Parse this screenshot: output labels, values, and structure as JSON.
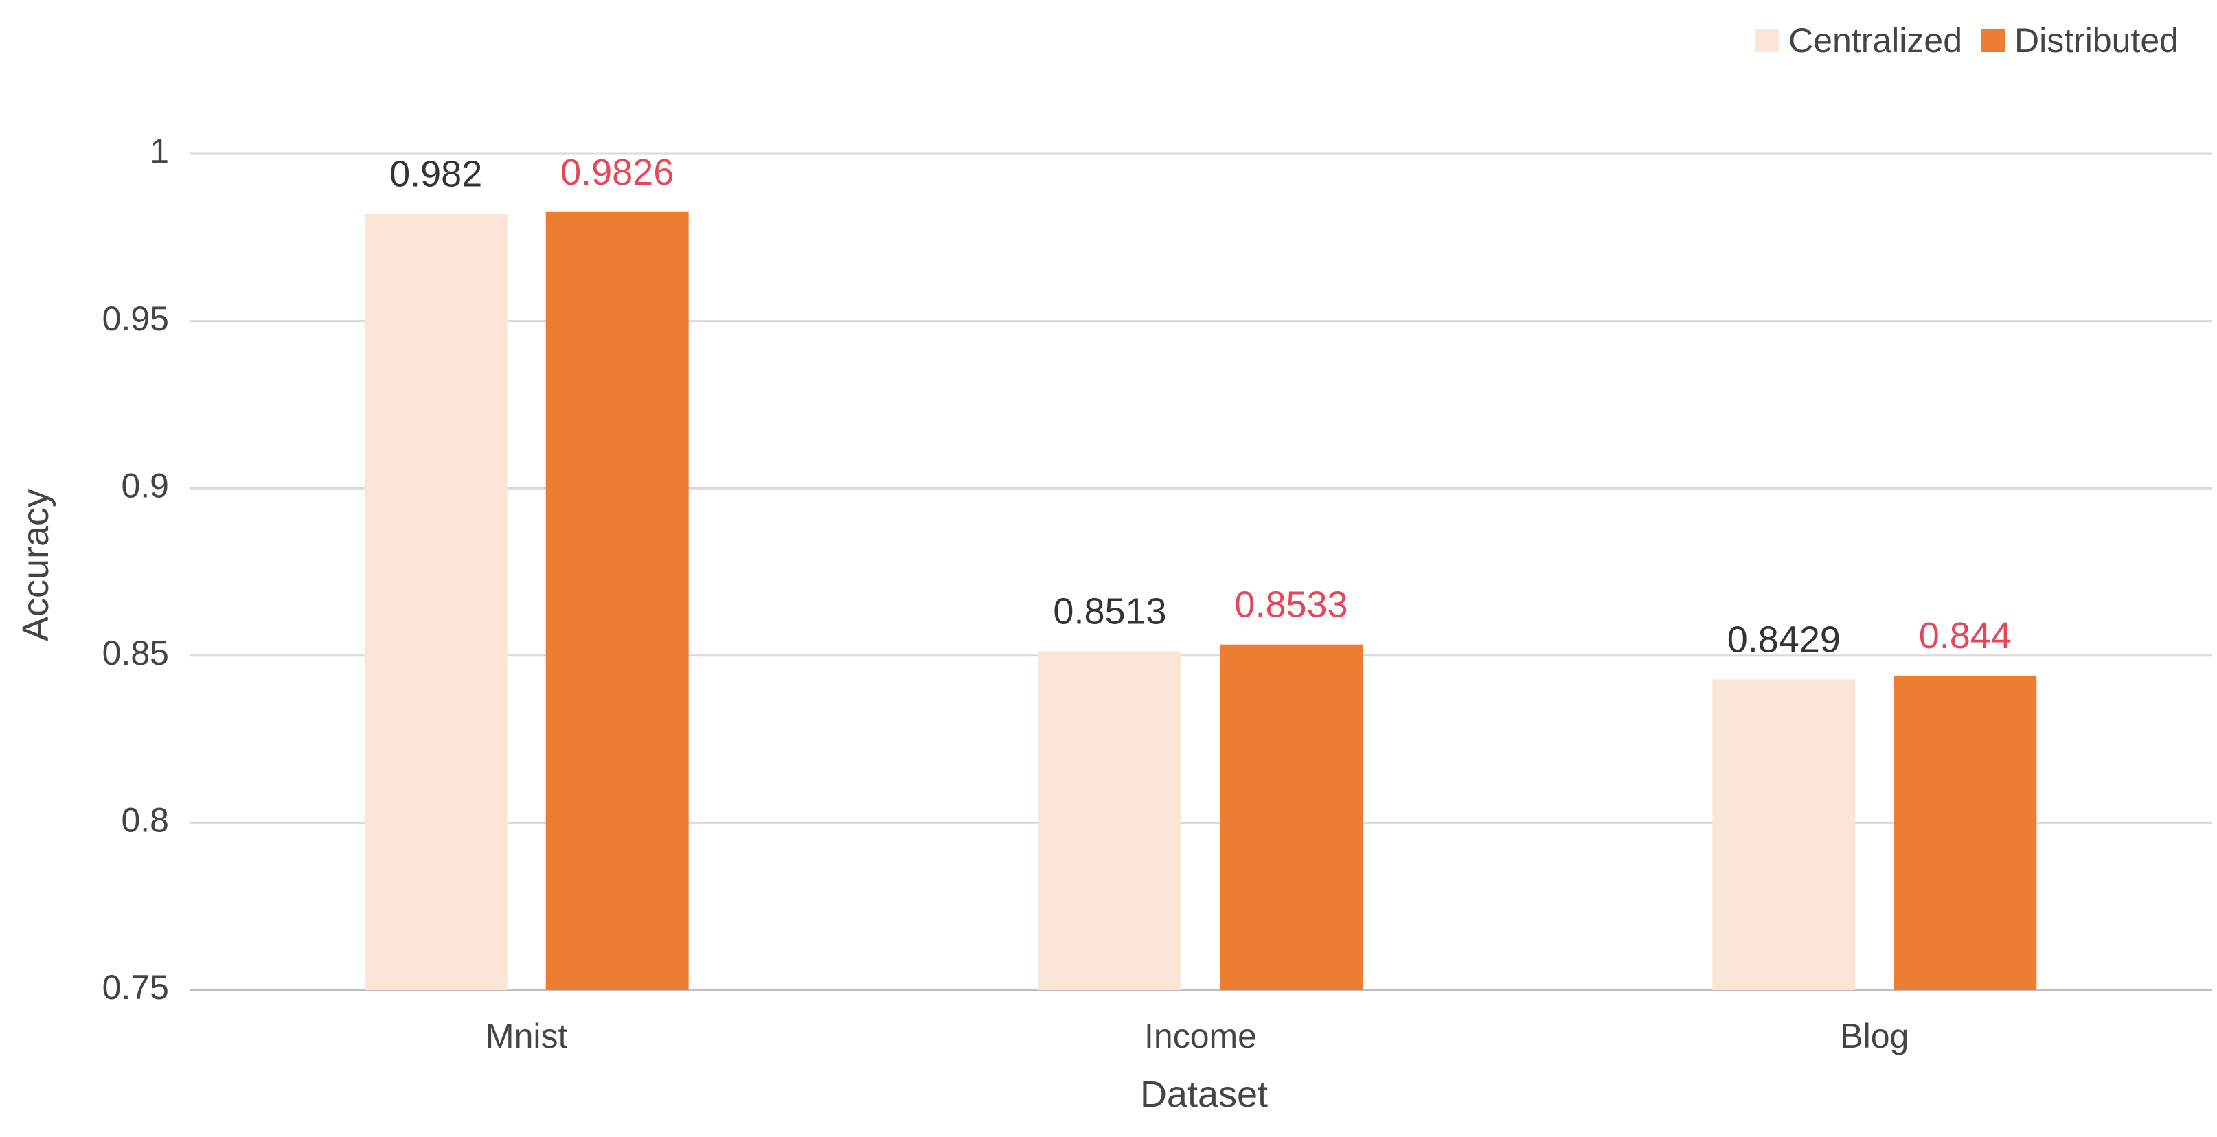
{
  "chart_data": {
    "type": "bar",
    "categories": [
      "Mnist",
      "Income",
      "Blog"
    ],
    "series": [
      {
        "name": "Centralized",
        "values": [
          0.982,
          0.8513,
          0.8429
        ],
        "labels": [
          "0.982",
          "0.8513",
          "0.8429"
        ],
        "color": "#FBE5D6",
        "label_color": "#333333"
      },
      {
        "name": "Distributed",
        "values": [
          0.9826,
          0.8533,
          0.844
        ],
        "labels": [
          "0.9826",
          "0.8533",
          "0.844"
        ],
        "color": "#ED7D31",
        "label_color": "#E5475A"
      }
    ],
    "title": "",
    "xlabel": "Dataset",
    "ylabel": "Accuracy",
    "ylim": [
      0.75,
      1
    ],
    "yticks": [
      0.75,
      0.8,
      0.85,
      0.9,
      0.95,
      1
    ],
    "ytick_labels": [
      "0.75",
      "0.8",
      "0.85",
      "0.9",
      "0.95",
      "1"
    ],
    "grid": true,
    "legend_position": "top-right",
    "grid_color": "#D9D9D9",
    "text_color": "#444444"
  }
}
